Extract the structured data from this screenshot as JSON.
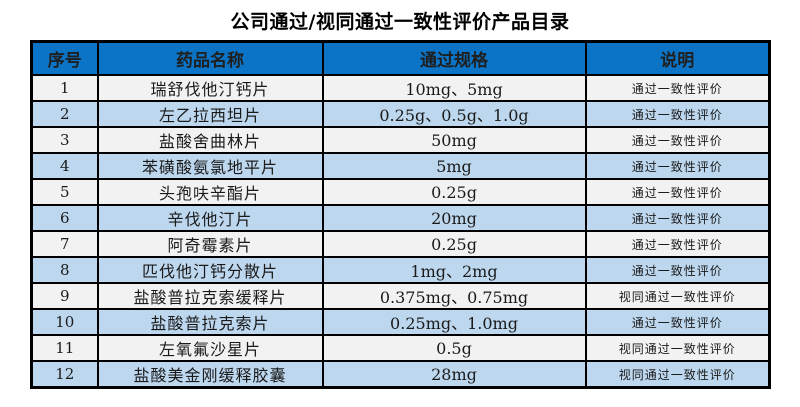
{
  "title": "公司通过/视同通过一致性评价产品目录",
  "colors": {
    "header_bg": "#0b74c6",
    "row_odd_bg": "#f2f2f2",
    "row_even_bg": "#bdd7ee",
    "border": "#000000",
    "title_text": "#000000"
  },
  "table": {
    "headers": [
      "序号",
      "药品名称",
      "通过规格",
      "说明"
    ],
    "rows": [
      {
        "no": "1",
        "name": "瑞舒伐他汀钙片",
        "spec": "10mg、5mg",
        "note": "通过一致性评价"
      },
      {
        "no": "2",
        "name": "左乙拉西坦片",
        "spec": "0.25g、0.5g、1.0g",
        "note": "通过一致性评价"
      },
      {
        "no": "3",
        "name": "盐酸舍曲林片",
        "spec": "50mg",
        "note": "通过一致性评价"
      },
      {
        "no": "4",
        "name": "苯磺酸氨氯地平片",
        "spec": "5mg",
        "note": "通过一致性评价"
      },
      {
        "no": "5",
        "name": "头孢呋辛酯片",
        "spec": "0.25g",
        "note": "通过一致性评价"
      },
      {
        "no": "6",
        "name": "辛伐他汀片",
        "spec": "20mg",
        "note": "通过一致性评价"
      },
      {
        "no": "7",
        "name": "阿奇霉素片",
        "spec": "0.25g",
        "note": "通过一致性评价"
      },
      {
        "no": "8",
        "name": "匹伐他汀钙分散片",
        "spec": "1mg、2mg",
        "note": "通过一致性评价"
      },
      {
        "no": "9",
        "name": "盐酸普拉克索缓释片",
        "spec": "0.375mg、0.75mg",
        "note": "视同通过一致性评价"
      },
      {
        "no": "10",
        "name": "盐酸普拉克索片",
        "spec": "0.25mg、1.0mg",
        "note": "通过一致性评价"
      },
      {
        "no": "11",
        "name": "左氧氟沙星片",
        "spec": "0.5g",
        "note": "视同通过一致性评价"
      },
      {
        "no": "12",
        "name": "盐酸美金刚缓释胶囊",
        "spec": "28mg",
        "note": "视同通过一致性评价"
      }
    ]
  }
}
